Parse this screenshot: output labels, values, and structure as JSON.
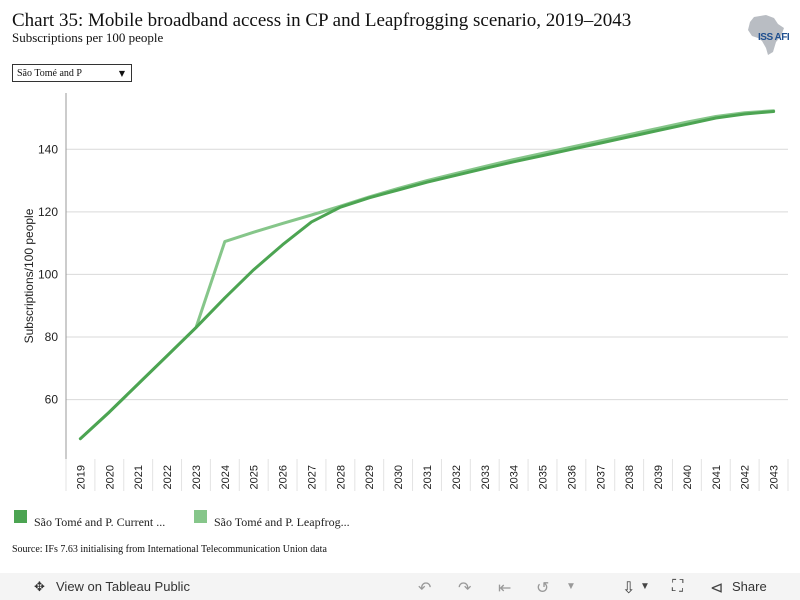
{
  "header": {
    "title": "Chart 35: Mobile broadband access in CP and Leapfrogging scenario, 2019–2043",
    "subtitle": "Subscriptions per 100 people",
    "logo_text": "ISS AFI"
  },
  "filter": {
    "selected": "São Tomé and P"
  },
  "legend": {
    "items": [
      {
        "label": "São Tomé and P. Current ...",
        "color": "#4ca452"
      },
      {
        "label": "São Tomé and P. Leapfrog...",
        "color": "#86c68a"
      }
    ]
  },
  "source": "Source: IFs 7.63 initialising from International Telecommunication Union data",
  "footer": {
    "view_label": "View on Tableau Public",
    "share_label": "Share"
  },
  "chart_data": {
    "type": "line",
    "ylabel": "Subscriptions/100 people",
    "xlabel": "",
    "ylim": [
      41,
      158
    ],
    "yticks": [
      60,
      80,
      100,
      120,
      140
    ],
    "grid": true,
    "x": [
      2019,
      2020,
      2021,
      2022,
      2023,
      2024,
      2025,
      2026,
      2027,
      2028,
      2029,
      2030,
      2031,
      2032,
      2033,
      2034,
      2035,
      2036,
      2037,
      2038,
      2039,
      2040,
      2041,
      2042,
      2043
    ],
    "series": [
      {
        "name": "São Tomé and P. Current ...",
        "color": "#4ca452",
        "values": [
          47.5,
          56,
          65,
          74,
          83,
          92.5,
          101.5,
          109.5,
          116.8,
          121.5,
          124.5,
          127,
          129.5,
          131.7,
          133.9,
          136,
          138,
          140,
          142,
          144,
          146,
          148,
          150,
          151.3,
          152.1
        ]
      },
      {
        "name": "São Tomé and P. Leapfrog...",
        "color": "#86c68a",
        "values": [
          47.5,
          56,
          65,
          74,
          83,
          110.5,
          113.5,
          116.3,
          119,
          121.8,
          124.8,
          127.5,
          130,
          132.3,
          134.5,
          136.7,
          138.7,
          140.7,
          142.7,
          144.7,
          146.7,
          148.7,
          150.5,
          151.7,
          152.3
        ]
      }
    ]
  }
}
